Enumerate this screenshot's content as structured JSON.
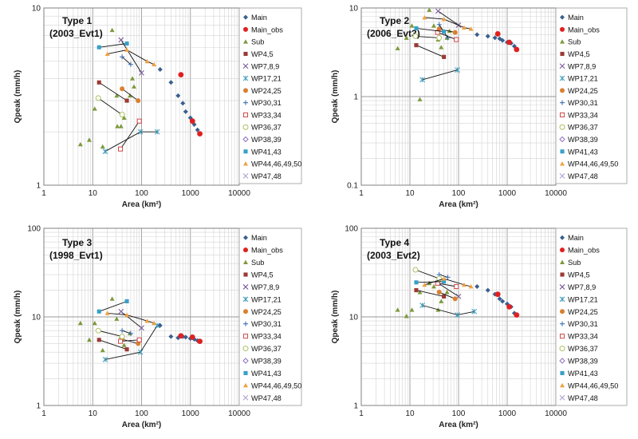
{
  "legend_labels": [
    "Main",
    "Main_obs",
    "Sub",
    "WP4,5",
    "WP7,8,9",
    "WP17,21",
    "WP24,25",
    "WP30,31",
    "WP33,34",
    "WP36,37",
    "WP38,39",
    "WP41,43",
    "WP44,46,49,50",
    "WP47,48"
  ],
  "colors": {
    "Main": "#3a5f8f",
    "Main_obs": "#e02020",
    "Sub": "#7d9a3c",
    "WP4,5": "#9b3a34",
    "WP7,8,9": "#7a5b99",
    "WP17,21": "#3b9bbb",
    "WP24,25": "#d98030",
    "WP30,31": "#3e6fb0",
    "WP33,34": "#d04848",
    "WP36,37": "#a8c060",
    "WP38,39": "#9070c0",
    "WP41,43": "#38a0c8",
    "WP44,46,49,50": "#f0a040",
    "WP47,48": "#b0a0d0"
  },
  "chart_data": [
    {
      "type": "scatter",
      "title": "Type 1",
      "subtitle": "(2003_Evt1)",
      "xlabel": "Area (km²)",
      "ylabel": "Qpeak (mm/h)",
      "xscale": "log",
      "yscale": "log",
      "xlim": [
        1,
        10000
      ],
      "ylim": [
        1,
        10
      ],
      "xticks": [
        "1",
        "10",
        "100",
        "1000",
        "10000"
      ],
      "yticks": [
        "1",
        "10"
      ],
      "legend_position": "right",
      "series": [
        {
          "name": "Main",
          "points": [
            [
              240,
              4.5
            ],
            [
              400,
              3.8
            ],
            [
              560,
              3.2
            ],
            [
              700,
              2.9
            ],
            [
              800,
              2.6
            ],
            [
              1000,
              2.4
            ],
            [
              1200,
              2.2
            ],
            [
              1400,
              2.05
            ]
          ]
        },
        {
          "name": "Main_obs",
          "points": [
            [
              640,
              4.2
            ],
            [
              1100,
              2.3
            ],
            [
              1560,
              1.95
            ]
          ]
        },
        {
          "name": "Sub",
          "points": [
            [
              5.6,
              1.7
            ],
            [
              8.5,
              1.8
            ],
            [
              11,
              2.7
            ],
            [
              16,
              1.65
            ],
            [
              25,
              7.5
            ],
            [
              31,
              3.2
            ],
            [
              32,
              2.15
            ],
            [
              38,
              2.15
            ],
            [
              44,
              2.4
            ],
            [
              58,
              3.2
            ],
            [
              65,
              4.0
            ],
            [
              70,
              3.6
            ]
          ]
        },
        {
          "name": "WP4,5",
          "points": [
            [
              13.5,
              3.8
            ],
            [
              50,
              3.0
            ]
          ],
          "line": true
        },
        {
          "name": "WP7,8,9",
          "points": [
            [
              38,
              6.6
            ],
            [
              100,
              4.3
            ]
          ],
          "line": true
        },
        {
          "name": "WP17,21",
          "points": [
            [
              18,
              1.55
            ],
            [
              95,
              2.0
            ],
            [
              210,
              2.0
            ]
          ],
          "line": true
        },
        {
          "name": "WP24,25",
          "points": [
            [
              40,
              3.5
            ],
            [
              85,
              3.0
            ]
          ],
          "line": true
        },
        {
          "name": "WP30,31",
          "points": [
            [
              40,
              5.3
            ],
            [
              60,
              4.8
            ]
          ],
          "line": true
        },
        {
          "name": "WP33,34",
          "points": [
            [
              37,
              1.6
            ],
            [
              90,
              2.3
            ]
          ],
          "line": true
        },
        {
          "name": "WP36,37",
          "points": [
            [
              13,
              3.1
            ],
            [
              40,
              2.5
            ]
          ],
          "line": true
        },
        {
          "name": "WP41,43",
          "points": [
            [
              13.5,
              6.0
            ],
            [
              50,
              6.3
            ]
          ],
          "line": true
        },
        {
          "name": "WP44,46,49,50",
          "points": [
            [
              20,
              5.5
            ],
            [
              50,
              5.8
            ],
            [
              130,
              5.0
            ],
            [
              180,
              4.8
            ]
          ],
          "line": true
        }
      ]
    },
    {
      "type": "scatter",
      "title": "Type 2",
      "subtitle": "(2006_Evt3)",
      "xlabel": "Area (km²)",
      "ylabel": "Qpeak (mm/h)",
      "xscale": "log",
      "yscale": "log",
      "xlim": [
        1,
        10000
      ],
      "ylim": [
        0.1,
        10
      ],
      "xticks": [
        "1",
        "10",
        "100",
        "1000",
        "10000"
      ],
      "yticks": [
        "0.1",
        "1",
        "10"
      ],
      "legend_position": "right",
      "series": [
        {
          "name": "Main",
          "points": [
            [
              240,
              5.0
            ],
            [
              400,
              4.8
            ],
            [
              560,
              4.6
            ],
            [
              700,
              4.5
            ],
            [
              800,
              4.3
            ],
            [
              1000,
              4.1
            ],
            [
              1200,
              4.0
            ],
            [
              1400,
              3.7
            ]
          ]
        },
        {
          "name": "Main_obs",
          "points": [
            [
              640,
              5.1
            ],
            [
              1100,
              4.1
            ],
            [
              1560,
              3.4
            ]
          ]
        },
        {
          "name": "Sub",
          "points": [
            [
              5.6,
              3.5
            ],
            [
              8.5,
              4.6
            ],
            [
              11,
              6.3
            ],
            [
              16,
              0.93
            ],
            [
              25,
              9.5
            ],
            [
              31,
              6.3
            ],
            [
              38,
              4.4
            ],
            [
              44,
              3.6
            ],
            [
              58,
              4.6
            ],
            [
              65,
              5.5
            ]
          ]
        },
        {
          "name": "WP4,5",
          "points": [
            [
              13.5,
              3.8
            ],
            [
              50,
              2.8
            ]
          ],
          "line": true
        },
        {
          "name": "WP7,8,9",
          "points": [
            [
              38,
              9.2
            ],
            [
              100,
              6.4
            ]
          ],
          "line": true
        },
        {
          "name": "WP17,21",
          "points": [
            [
              18,
              1.55
            ],
            [
              95,
              2.0
            ]
          ],
          "line": true
        },
        {
          "name": "WP24,25",
          "points": [
            [
              40,
              5.8
            ],
            [
              85,
              5.3
            ]
          ],
          "line": true
        },
        {
          "name": "WP30,31",
          "points": [
            [
              40,
              6.5
            ],
            [
              60,
              4.6
            ]
          ],
          "line": true
        },
        {
          "name": "WP33,34",
          "points": [
            [
              37,
              5.3
            ],
            [
              90,
              4.4
            ]
          ],
          "line": true
        },
        {
          "name": "WP36,37",
          "points": [
            [
              13,
              4.8
            ],
            [
              40,
              4.6
            ]
          ],
          "line": true
        },
        {
          "name": "WP41,43",
          "points": [
            [
              13.5,
              5.9
            ],
            [
              50,
              5.4
            ]
          ],
          "line": true
        },
        {
          "name": "WP44,46,49,50",
          "points": [
            [
              20,
              7.8
            ],
            [
              50,
              7.5
            ],
            [
              130,
              6.0
            ],
            [
              180,
              5.8
            ]
          ],
          "line": true
        }
      ]
    },
    {
      "type": "scatter",
      "title": "Type 3",
      "subtitle": "(1998_Evt1)",
      "xlabel": "Area (km²)",
      "ylabel": "Qpeak (mm/h)",
      "xscale": "log",
      "yscale": "log",
      "xlim": [
        1,
        10000
      ],
      "ylim": [
        1,
        100
      ],
      "xticks": [
        "1",
        "10",
        "100",
        "1000",
        "10000"
      ],
      "yticks": [
        "1",
        "10",
        "100"
      ],
      "legend_position": "right",
      "series": [
        {
          "name": "Main",
          "points": [
            [
              240,
              8.0
            ],
            [
              400,
              6.0
            ],
            [
              560,
              5.8
            ],
            [
              700,
              6.0
            ],
            [
              800,
              5.9
            ],
            [
              1000,
              5.7
            ],
            [
              1200,
              5.6
            ],
            [
              1400,
              5.4
            ]
          ]
        },
        {
          "name": "Main_obs",
          "points": [
            [
              640,
              6.1
            ],
            [
              1100,
              5.9
            ],
            [
              1560,
              5.3
            ]
          ]
        },
        {
          "name": "Sub",
          "points": [
            [
              5.6,
              8.5
            ],
            [
              8.5,
              5.5
            ],
            [
              11,
              8.5
            ],
            [
              16,
              4.2
            ],
            [
              25,
              16.0
            ],
            [
              31,
              9.5
            ],
            [
              38,
              6.0
            ],
            [
              44,
              4.8
            ],
            [
              58,
              6.5
            ]
          ]
        },
        {
          "name": "WP4,5",
          "points": [
            [
              13.5,
              5.5
            ],
            [
              50,
              4.3
            ]
          ],
          "line": true
        },
        {
          "name": "WP7,8,9",
          "points": [
            [
              38,
              11.5
            ],
            [
              100,
              7.5
            ]
          ],
          "line": true
        },
        {
          "name": "WP17,21",
          "points": [
            [
              18,
              3.3
            ],
            [
              95,
              4.0
            ],
            [
              210,
              8.0
            ]
          ],
          "line": true
        },
        {
          "name": "WP24,25",
          "points": [
            [
              40,
              5.6
            ],
            [
              85,
              5.0
            ]
          ],
          "line": true
        },
        {
          "name": "WP30,31",
          "points": [
            [
              40,
              7.0
            ],
            [
              60,
              6.5
            ]
          ],
          "line": true
        },
        {
          "name": "WP33,34",
          "points": [
            [
              37,
              5.3
            ],
            [
              90,
              5.5
            ]
          ],
          "line": true
        },
        {
          "name": "WP36,37",
          "points": [
            [
              13,
              7.0
            ],
            [
              40,
              6.0
            ]
          ],
          "line": true
        },
        {
          "name": "WP41,43",
          "points": [
            [
              13.5,
              11.5
            ],
            [
              50,
              15.0
            ]
          ],
          "line": true
        },
        {
          "name": "WP44,46,49,50",
          "points": [
            [
              20,
              11.0
            ],
            [
              50,
              10.5
            ],
            [
              130,
              9.0
            ],
            [
              180,
              8.5
            ]
          ],
          "line": true
        }
      ]
    },
    {
      "type": "scatter",
      "title": "Type 4",
      "subtitle": "(2003_Evt2)",
      "xlabel": "Area (km²)",
      "ylabel": "Qpeak (mm/h)",
      "xscale": "log",
      "yscale": "log",
      "xlim": [
        1,
        10000
      ],
      "ylim": [
        1,
        100
      ],
      "xticks": [
        "1",
        "10",
        "100",
        "1000",
        "10000"
      ],
      "yticks": [
        "1",
        "10",
        "100"
      ],
      "legend_position": "right",
      "series": [
        {
          "name": "Main",
          "points": [
            [
              240,
              22.0
            ],
            [
              400,
              20.0
            ],
            [
              560,
              18.0
            ],
            [
              700,
              16.0
            ],
            [
              800,
              15.0
            ],
            [
              1000,
              14.0
            ],
            [
              1200,
              13.0
            ],
            [
              1400,
              11.0
            ]
          ]
        },
        {
          "name": "Main_obs",
          "points": [
            [
              640,
              18.0
            ],
            [
              1100,
              13.0
            ],
            [
              1560,
              10.5
            ]
          ]
        },
        {
          "name": "Sub",
          "points": [
            [
              5.6,
              12.0
            ],
            [
              8.5,
              10.2
            ],
            [
              11,
              12.0
            ],
            [
              16,
              19.0
            ],
            [
              25,
              24.0
            ],
            [
              31,
              22.0
            ],
            [
              38,
              12.0
            ],
            [
              44,
              15.0
            ],
            [
              58,
              19.0
            ]
          ]
        },
        {
          "name": "WP4,5",
          "points": [
            [
              13.5,
              20.0
            ],
            [
              50,
              17.0
            ]
          ],
          "line": true
        },
        {
          "name": "WP7,8,9",
          "points": [
            [
              38,
              24.0
            ],
            [
              100,
              17.0
            ]
          ],
          "line": true
        },
        {
          "name": "WP17,21",
          "points": [
            [
              18,
              13.5
            ],
            [
              95,
              10.5
            ],
            [
              210,
              11.5
            ]
          ],
          "line": true
        },
        {
          "name": "WP24,25",
          "points": [
            [
              40,
              19.0
            ],
            [
              85,
              16.0
            ]
          ],
          "line": true
        },
        {
          "name": "WP30,31",
          "points": [
            [
              40,
              30.0
            ],
            [
              60,
              28.0
            ]
          ],
          "line": true
        },
        {
          "name": "WP33,34",
          "points": [
            [
              37,
              24.0
            ],
            [
              90,
              22.0
            ]
          ],
          "line": true
        },
        {
          "name": "WP36,37",
          "points": [
            [
              13,
              34.0
            ],
            [
              40,
              27.0
            ]
          ],
          "line": true
        },
        {
          "name": "WP41,43",
          "points": [
            [
              13.5,
              24.5
            ],
            [
              50,
              25.0
            ]
          ],
          "line": true
        },
        {
          "name": "WP44,46,49,50",
          "points": [
            [
              20,
              23.0
            ],
            [
              50,
              27.0
            ],
            [
              130,
              23.0
            ],
            [
              180,
              22.0
            ]
          ],
          "line": true
        }
      ]
    }
  ]
}
